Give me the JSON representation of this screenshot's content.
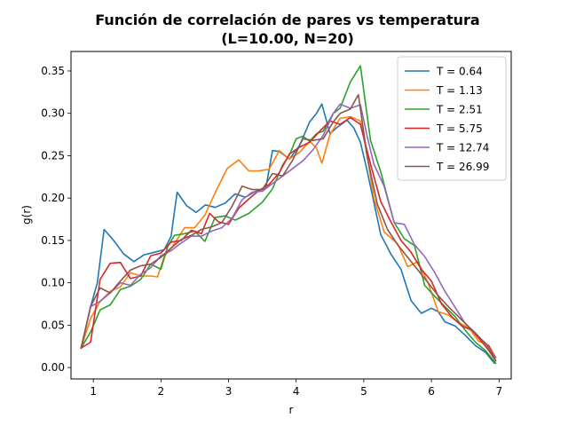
{
  "chart_data": {
    "type": "line",
    "title": "Función de correlación de pares vs temperatura",
    "subtitle": "(L=10.00, N=20)",
    "xlabel": "r",
    "ylabel": "g(r)",
    "xlim": [
      0.67,
      7.18
    ],
    "ylim": [
      -0.0135,
      0.373
    ],
    "xticks": [
      1,
      2,
      3,
      4,
      5,
      6,
      7
    ],
    "yticks": [
      0.0,
      0.05,
      0.1,
      0.15,
      0.2,
      0.25,
      0.3,
      0.35
    ],
    "xtick_labels": [
      "1",
      "2",
      "3",
      "4",
      "5",
      "6",
      "7"
    ],
    "ytick_labels": [
      "0.00",
      "0.05",
      "0.10",
      "0.15",
      "0.20",
      "0.25",
      "0.30",
      "0.35"
    ],
    "grid": false,
    "legend_position": "top-right",
    "series": [
      {
        "name": "T = 0.64",
        "color": "#1f77b4",
        "x": [
          0.82,
          0.96,
          1.06,
          1.16,
          1.3,
          1.45,
          1.6,
          1.75,
          1.9,
          2.05,
          2.15,
          2.24,
          2.38,
          2.52,
          2.66,
          2.8,
          2.95,
          3.1,
          3.25,
          3.4,
          3.55,
          3.65,
          3.75,
          3.9,
          4.05,
          4.2,
          4.3,
          4.38,
          4.5,
          4.6,
          4.75,
          4.85,
          4.95,
          5.05,
          5.25,
          5.4,
          5.55,
          5.7,
          5.85,
          6.0,
          6.1,
          6.2,
          6.35,
          6.5,
          6.65,
          6.8,
          6.93
        ],
        "y": [
          0.023,
          0.072,
          0.1,
          0.163,
          0.15,
          0.134,
          0.125,
          0.133,
          0.136,
          0.139,
          0.155,
          0.207,
          0.191,
          0.183,
          0.192,
          0.189,
          0.194,
          0.205,
          0.201,
          0.208,
          0.211,
          0.256,
          0.255,
          0.246,
          0.262,
          0.29,
          0.3,
          0.311,
          0.276,
          0.283,
          0.292,
          0.283,
          0.266,
          0.232,
          0.157,
          0.134,
          0.116,
          0.079,
          0.064,
          0.07,
          0.066,
          0.054,
          0.049,
          0.038,
          0.026,
          0.018,
          0.005
        ]
      },
      {
        "name": "T = 1.13",
        "color": "#ff7f0e",
        "x": [
          0.82,
          0.96,
          1.1,
          1.25,
          1.4,
          1.55,
          1.7,
          1.85,
          1.95,
          2.05,
          2.2,
          2.35,
          2.5,
          2.65,
          2.8,
          2.98,
          3.15,
          3.3,
          3.45,
          3.6,
          3.75,
          3.9,
          4.05,
          4.2,
          4.3,
          4.38,
          4.5,
          4.65,
          4.8,
          4.95,
          5.05,
          5.15,
          5.3,
          5.5,
          5.65,
          5.8,
          5.95,
          6.1,
          6.25,
          6.4,
          6.55,
          6.7,
          6.85,
          6.95
        ],
        "y": [
          0.023,
          0.058,
          0.078,
          0.09,
          0.095,
          0.112,
          0.108,
          0.108,
          0.107,
          0.131,
          0.146,
          0.165,
          0.165,
          0.18,
          0.206,
          0.235,
          0.245,
          0.232,
          0.232,
          0.234,
          0.256,
          0.246,
          0.254,
          0.267,
          0.259,
          0.241,
          0.275,
          0.294,
          0.296,
          0.291,
          0.25,
          0.2,
          0.16,
          0.146,
          0.119,
          0.125,
          0.1,
          0.066,
          0.062,
          0.053,
          0.047,
          0.031,
          0.026,
          0.012
        ]
      },
      {
        "name": "T = 2.51",
        "color": "#2ca02c",
        "x": [
          0.82,
          0.96,
          1.1,
          1.25,
          1.4,
          1.55,
          1.7,
          1.85,
          2.0,
          2.1,
          2.2,
          2.35,
          2.5,
          2.65,
          2.8,
          2.95,
          3.1,
          3.3,
          3.5,
          3.65,
          3.8,
          3.9,
          4.0,
          4.1,
          4.2,
          4.3,
          4.4,
          4.55,
          4.65,
          4.8,
          4.95,
          5.1,
          5.25,
          5.45,
          5.6,
          5.75,
          5.9,
          6.05,
          6.2,
          6.35,
          6.5,
          6.65,
          6.8,
          6.95
        ],
        "y": [
          0.023,
          0.042,
          0.068,
          0.074,
          0.092,
          0.096,
          0.104,
          0.122,
          0.116,
          0.143,
          0.156,
          0.158,
          0.161,
          0.149,
          0.177,
          0.179,
          0.174,
          0.182,
          0.195,
          0.211,
          0.239,
          0.251,
          0.27,
          0.273,
          0.267,
          0.276,
          0.279,
          0.3,
          0.306,
          0.337,
          0.356,
          0.268,
          0.231,
          0.171,
          0.152,
          0.144,
          0.097,
          0.084,
          0.072,
          0.06,
          0.044,
          0.03,
          0.02,
          0.005
        ]
      },
      {
        "name": "T = 5.75",
        "color": "#d62728",
        "x": [
          0.82,
          0.96,
          1.1,
          1.25,
          1.4,
          1.55,
          1.7,
          1.85,
          2.0,
          2.15,
          2.3,
          2.45,
          2.6,
          2.72,
          2.85,
          3.0,
          3.15,
          3.3,
          3.45,
          3.6,
          3.75,
          3.9,
          4.05,
          4.2,
          4.35,
          4.5,
          4.65,
          4.8,
          4.95,
          5.1,
          5.25,
          5.4,
          5.55,
          5.7,
          5.85,
          6.0,
          6.15,
          6.3,
          6.45,
          6.6,
          6.75,
          6.85,
          6.95
        ],
        "y": [
          0.023,
          0.03,
          0.104,
          0.123,
          0.124,
          0.105,
          0.108,
          0.132,
          0.135,
          0.148,
          0.15,
          0.162,
          0.158,
          0.182,
          0.172,
          0.169,
          0.188,
          0.199,
          0.209,
          0.216,
          0.23,
          0.252,
          0.26,
          0.266,
          0.279,
          0.291,
          0.287,
          0.295,
          0.287,
          0.24,
          0.196,
          0.172,
          0.15,
          0.136,
          0.116,
          0.102,
          0.075,
          0.06,
          0.049,
          0.044,
          0.03,
          0.02,
          0.008
        ]
      },
      {
        "name": "T = 12.74",
        "color": "#9467bd",
        "x": [
          0.82,
          0.96,
          1.1,
          1.25,
          1.4,
          1.55,
          1.7,
          1.85,
          2.0,
          2.15,
          2.3,
          2.45,
          2.6,
          2.75,
          2.9,
          3.05,
          3.2,
          3.35,
          3.5,
          3.65,
          3.8,
          3.95,
          4.1,
          4.25,
          4.4,
          4.55,
          4.65,
          4.8,
          4.95,
          5.05,
          5.15,
          5.3,
          5.45,
          5.6,
          5.75,
          5.9,
          6.05,
          6.2,
          6.35,
          6.5,
          6.65,
          6.8,
          6.95
        ],
        "y": [
          0.023,
          0.072,
          0.078,
          0.088,
          0.1,
          0.097,
          0.11,
          0.118,
          0.132,
          0.138,
          0.147,
          0.155,
          0.155,
          0.161,
          0.165,
          0.176,
          0.198,
          0.207,
          0.208,
          0.217,
          0.226,
          0.235,
          0.244,
          0.257,
          0.274,
          0.3,
          0.311,
          0.306,
          0.31,
          0.273,
          0.24,
          0.214,
          0.171,
          0.169,
          0.145,
          0.131,
          0.112,
          0.09,
          0.071,
          0.052,
          0.041,
          0.028,
          0.012
        ]
      },
      {
        "name": "T = 26.99",
        "color": "#8c564b",
        "x": [
          0.82,
          0.96,
          1.1,
          1.25,
          1.4,
          1.55,
          1.7,
          1.85,
          2.0,
          2.15,
          2.3,
          2.45,
          2.6,
          2.75,
          2.9,
          3.05,
          3.2,
          3.35,
          3.5,
          3.65,
          3.8,
          3.95,
          4.1,
          4.25,
          4.4,
          4.55,
          4.65,
          4.8,
          4.92,
          5.05,
          5.2,
          5.35,
          5.5,
          5.65,
          5.8,
          5.95,
          6.1,
          6.25,
          6.4,
          6.55,
          6.7,
          6.85,
          6.95
        ],
        "y": [
          0.023,
          0.072,
          0.094,
          0.088,
          0.102,
          0.115,
          0.12,
          0.122,
          0.13,
          0.141,
          0.151,
          0.156,
          0.163,
          0.166,
          0.171,
          0.19,
          0.214,
          0.21,
          0.21,
          0.229,
          0.226,
          0.245,
          0.27,
          0.268,
          0.27,
          0.29,
          0.3,
          0.305,
          0.322,
          0.249,
          0.193,
          0.163,
          0.145,
          0.13,
          0.115,
          0.1,
          0.085,
          0.072,
          0.06,
          0.048,
          0.036,
          0.025,
          0.008
        ]
      }
    ]
  }
}
